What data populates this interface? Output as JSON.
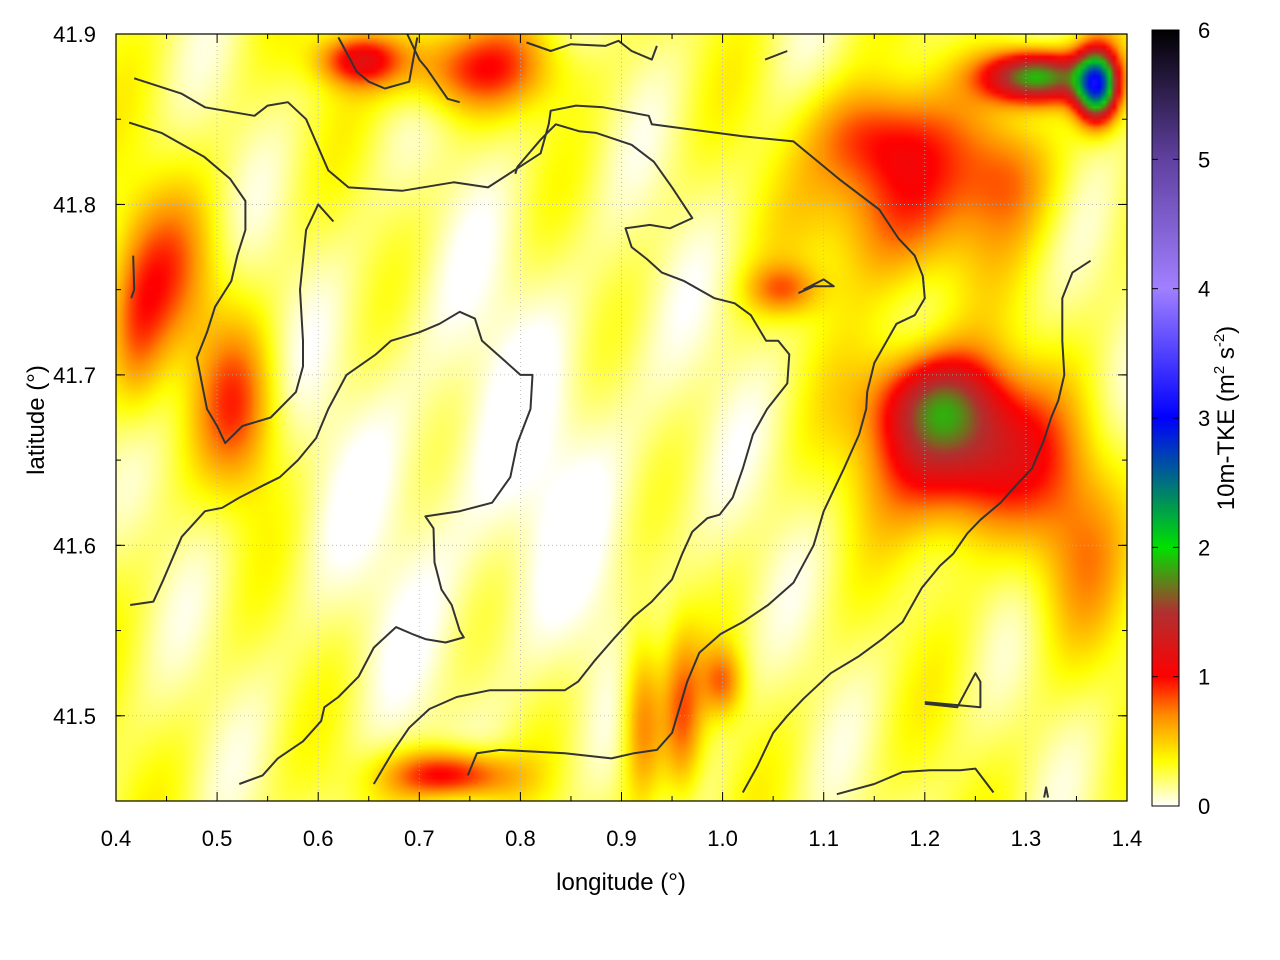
{
  "chart_data": {
    "type": "heatmap",
    "title": "",
    "xlabel": "longitude (°)",
    "ylabel": "latitude (°)",
    "xlim": [
      0.4,
      1.4
    ],
    "ylim": [
      41.45,
      41.9
    ],
    "xticks": [
      "0.4",
      "0.5",
      "0.6",
      "0.7",
      "0.8",
      "0.9",
      "1.0",
      "1.1",
      "1.2",
      "1.3",
      "1.4"
    ],
    "yticks": [
      "41.5",
      "41.6",
      "41.7",
      "41.8",
      "41.9"
    ],
    "grid": true,
    "colorbar": {
      "label": "10m-TKE (m² s⁻²)",
      "label_main": "10m-TKE (m",
      "label_sup1": "2",
      "label_mid": " s",
      "label_sup2": "-2",
      "label_end": ")",
      "range": [
        0,
        6
      ],
      "ticks": [
        "0",
        "1",
        "2",
        "3",
        "4",
        "5",
        "6"
      ],
      "stops": [
        {
          "value": 0.0,
          "color": "#ffffff"
        },
        {
          "value": 0.35,
          "color": "#ffff00"
        },
        {
          "value": 0.7,
          "color": "#ff8c00"
        },
        {
          "value": 1.0,
          "color": "#ff0000"
        },
        {
          "value": 1.5,
          "color": "#b03030"
        },
        {
          "value": 2.0,
          "color": "#00e000"
        },
        {
          "value": 3.0,
          "color": "#0000ff"
        },
        {
          "value": 4.0,
          "color": "#a080ff"
        },
        {
          "value": 5.0,
          "color": "#6040a0"
        },
        {
          "value": 6.0,
          "color": "#000000"
        }
      ]
    },
    "hotspots": [
      {
        "lon": 1.24,
        "lat": 41.655,
        "value": 1.15,
        "rx": 0.085,
        "ry": 0.045
      },
      {
        "lon": 1.21,
        "lat": 41.685,
        "value": 0.9,
        "rx": 0.06,
        "ry": 0.03
      },
      {
        "lon": 1.17,
        "lat": 41.8,
        "value": 0.65,
        "rx": 0.08,
        "ry": 0.05
      },
      {
        "lon": 1.15,
        "lat": 41.84,
        "value": 0.55,
        "rx": 0.06,
        "ry": 0.03
      },
      {
        "lon": 1.06,
        "lat": 41.75,
        "value": 0.5,
        "rx": 0.035,
        "ry": 0.015
      },
      {
        "lon": 0.52,
        "lat": 41.68,
        "value": 0.6,
        "rx": 0.04,
        "ry": 0.05
      },
      {
        "lon": 0.45,
        "lat": 41.76,
        "value": 0.5,
        "rx": 0.05,
        "ry": 0.05
      },
      {
        "lon": 0.42,
        "lat": 41.72,
        "value": 0.4,
        "rx": 0.03,
        "ry": 0.05
      },
      {
        "lon": 0.73,
        "lat": 41.465,
        "value": 0.95,
        "rx": 0.06,
        "ry": 0.015
      },
      {
        "lon": 0.92,
        "lat": 41.5,
        "value": 0.6,
        "rx": 0.02,
        "ry": 0.05
      },
      {
        "lon": 0.96,
        "lat": 41.5,
        "value": 0.55,
        "rx": 0.02,
        "ry": 0.05
      },
      {
        "lon": 1.0,
        "lat": 41.52,
        "value": 0.5,
        "rx": 0.02,
        "ry": 0.02
      },
      {
        "lon": 0.75,
        "lat": 41.88,
        "value": 0.7,
        "rx": 0.08,
        "ry": 0.025
      },
      {
        "lon": 0.64,
        "lat": 41.885,
        "value": 0.8,
        "rx": 0.04,
        "ry": 0.015
      },
      {
        "lon": 1.31,
        "lat": 41.875,
        "value": 1.8,
        "rx": 0.05,
        "ry": 0.015
      },
      {
        "lon": 1.37,
        "lat": 41.87,
        "value": 2.4,
        "rx": 0.02,
        "ry": 0.02
      },
      {
        "lon": 1.28,
        "lat": 41.82,
        "value": 0.5,
        "rx": 0.05,
        "ry": 0.04
      },
      {
        "lon": 1.35,
        "lat": 41.6,
        "value": 0.4,
        "rx": 0.05,
        "ry": 0.06
      }
    ],
    "contours": [
      [
        [
          0.418,
          41.874
        ],
        [
          0.465,
          41.865
        ],
        [
          0.488,
          41.857
        ],
        [
          0.537,
          41.852
        ],
        [
          0.55,
          41.858
        ],
        [
          0.57,
          41.86
        ],
        [
          0.588,
          41.85
        ],
        [
          0.61,
          41.82
        ],
        [
          0.63,
          41.81
        ],
        [
          0.683,
          41.808
        ],
        [
          0.734,
          41.813
        ],
        [
          0.768,
          41.81
        ],
        [
          0.82,
          41.83
        ],
        [
          0.828,
          41.847
        ],
        [
          0.83,
          41.855
        ],
        [
          0.855,
          41.858
        ],
        [
          0.882,
          41.857
        ],
        [
          0.927,
          41.852
        ],
        [
          0.93,
          41.847
        ],
        [
          1.02,
          41.84
        ],
        [
          1.07,
          41.837
        ],
        [
          1.115,
          41.815
        ],
        [
          1.155,
          41.797
        ],
        [
          1.174,
          41.78
        ],
        [
          1.19,
          41.77
        ],
        [
          1.198,
          41.758
        ],
        [
          1.2,
          41.745
        ],
        [
          1.19,
          41.735
        ],
        [
          1.172,
          41.73
        ],
        [
          1.15,
          41.707
        ],
        [
          1.143,
          41.69
        ],
        [
          1.142,
          41.68
        ],
        [
          1.135,
          41.665
        ],
        [
          1.12,
          41.645
        ],
        [
          1.1,
          41.62
        ],
        [
          1.09,
          41.6
        ],
        [
          1.07,
          41.578
        ],
        [
          1.045,
          41.565
        ],
        [
          1.02,
          41.555
        ],
        [
          0.998,
          41.548
        ],
        [
          0.977,
          41.537
        ],
        [
          0.965,
          41.52
        ],
        [
          0.95,
          41.49
        ],
        [
          0.935,
          41.48
        ],
        [
          0.912,
          41.478
        ],
        [
          0.89,
          41.475
        ],
        [
          0.844,
          41.478
        ],
        [
          0.78,
          41.48
        ],
        [
          0.757,
          41.478
        ],
        [
          0.748,
          41.465
        ]
      ],
      [
        [
          0.413,
          41.848
        ],
        [
          0.445,
          41.842
        ],
        [
          0.487,
          41.828
        ],
        [
          0.513,
          41.815
        ],
        [
          0.528,
          41.802
        ],
        [
          0.528,
          41.785
        ],
        [
          0.52,
          41.77
        ],
        [
          0.514,
          41.755
        ],
        [
          0.498,
          41.74
        ],
        [
          0.49,
          41.725
        ],
        [
          0.48,
          41.71
        ],
        [
          0.485,
          41.695
        ],
        [
          0.49,
          41.68
        ],
        [
          0.5,
          41.67
        ],
        [
          0.508,
          41.66
        ],
        [
          0.525,
          41.67
        ],
        [
          0.553,
          41.675
        ],
        [
          0.578,
          41.69
        ],
        [
          0.585,
          41.705
        ],
        [
          0.585,
          41.72
        ],
        [
          0.582,
          41.75
        ],
        [
          0.588,
          41.785
        ],
        [
          0.6,
          41.8
        ],
        [
          0.615,
          41.79
        ]
      ],
      [
        [
          0.415,
          41.745
        ],
        [
          0.418,
          41.75
        ],
        [
          0.417,
          41.77
        ]
      ],
      [
        [
          0.414,
          41.565
        ],
        [
          0.437,
          41.567
        ],
        [
          0.447,
          41.58
        ],
        [
          0.465,
          41.605
        ],
        [
          0.488,
          41.62
        ],
        [
          0.505,
          41.622
        ],
        [
          0.522,
          41.628
        ],
        [
          0.545,
          41.635
        ],
        [
          0.562,
          41.64
        ],
        [
          0.58,
          41.65
        ],
        [
          0.598,
          41.663
        ],
        [
          0.61,
          41.68
        ],
        [
          0.628,
          41.7
        ],
        [
          0.657,
          41.712
        ],
        [
          0.672,
          41.72
        ],
        [
          0.7,
          41.725
        ],
        [
          0.72,
          41.73
        ],
        [
          0.74,
          41.737
        ],
        [
          0.755,
          41.733
        ],
        [
          0.762,
          41.72
        ],
        [
          0.785,
          41.708
        ],
        [
          0.8,
          41.7
        ],
        [
          0.812,
          41.7
        ],
        [
          0.81,
          41.68
        ],
        [
          0.797,
          41.66
        ],
        [
          0.79,
          41.64
        ],
        [
          0.772,
          41.625
        ],
        [
          0.74,
          41.62
        ],
        [
          0.706,
          41.617
        ],
        [
          0.714,
          41.61
        ],
        [
          0.715,
          41.59
        ],
        [
          0.722,
          41.574
        ],
        [
          0.732,
          41.565
        ],
        [
          0.74,
          41.55
        ],
        [
          0.744,
          41.546
        ],
        [
          0.726,
          41.543
        ],
        [
          0.706,
          41.545
        ],
        [
          0.693,
          41.548
        ],
        [
          0.677,
          41.552
        ],
        [
          0.655,
          41.54
        ],
        [
          0.64,
          41.523
        ],
        [
          0.62,
          41.511
        ],
        [
          0.606,
          41.505
        ],
        [
          0.603,
          41.497
        ],
        [
          0.585,
          41.485
        ],
        [
          0.56,
          41.475
        ],
        [
          0.545,
          41.465
        ],
        [
          0.522,
          41.46
        ]
      ],
      [
        [
          0.655,
          41.46
        ],
        [
          0.665,
          41.47
        ],
        [
          0.675,
          41.48
        ],
        [
          0.69,
          41.493
        ],
        [
          0.71,
          41.504
        ],
        [
          0.737,
          41.511
        ],
        [
          0.77,
          41.515
        ],
        [
          0.795,
          41.515
        ],
        [
          0.844,
          41.515
        ],
        [
          0.857,
          41.52
        ],
        [
          0.873,
          41.532
        ],
        [
          0.892,
          41.545
        ],
        [
          0.912,
          41.558
        ],
        [
          0.93,
          41.567
        ],
        [
          0.95,
          41.58
        ],
        [
          0.96,
          41.595
        ],
        [
          0.97,
          41.608
        ],
        [
          0.985,
          41.616
        ],
        [
          0.997,
          41.618
        ],
        [
          1.01,
          41.628
        ],
        [
          1.02,
          41.645
        ],
        [
          1.03,
          41.665
        ],
        [
          1.044,
          41.68
        ],
        [
          1.064,
          41.695
        ],
        [
          1.066,
          41.712
        ],
        [
          1.055,
          41.72
        ],
        [
          1.043,
          41.72
        ],
        [
          1.028,
          41.735
        ],
        [
          1.012,
          41.742
        ],
        [
          0.992,
          41.745
        ],
        [
          0.962,
          41.755
        ],
        [
          0.94,
          41.76
        ],
        [
          0.925,
          41.768
        ],
        [
          0.91,
          41.775
        ],
        [
          0.904,
          41.786
        ],
        [
          0.928,
          41.788
        ],
        [
          0.948,
          41.786
        ],
        [
          0.97,
          41.792
        ],
        [
          0.95,
          41.81
        ],
        [
          0.932,
          41.825
        ],
        [
          0.91,
          41.835
        ],
        [
          0.875,
          41.842
        ],
        [
          0.858,
          41.843
        ],
        [
          0.835,
          41.847
        ],
        [
          0.82,
          41.838
        ],
        [
          0.797,
          41.822
        ],
        [
          0.795,
          41.818
        ]
      ],
      [
        [
          1.02,
          41.455
        ],
        [
          1.034,
          41.47
        ],
        [
          1.05,
          41.49
        ],
        [
          1.064,
          41.5
        ],
        [
          1.08,
          41.51
        ],
        [
          1.107,
          41.525
        ],
        [
          1.135,
          41.535
        ],
        [
          1.158,
          41.545
        ],
        [
          1.178,
          41.555
        ],
        [
          1.197,
          41.575
        ],
        [
          1.215,
          41.588
        ],
        [
          1.228,
          41.595
        ],
        [
          1.242,
          41.607
        ],
        [
          1.255,
          41.615
        ],
        [
          1.275,
          41.625
        ],
        [
          1.29,
          41.635
        ],
        [
          1.306,
          41.645
        ],
        [
          1.318,
          41.662
        ],
        [
          1.325,
          41.675
        ],
        [
          1.332,
          41.685
        ],
        [
          1.338,
          41.7
        ],
        [
          1.336,
          41.72
        ],
        [
          1.336,
          41.745
        ],
        [
          1.346,
          41.76
        ],
        [
          1.364,
          41.767
        ]
      ],
      [
        [
          1.113,
          41.454
        ],
        [
          1.15,
          41.46
        ],
        [
          1.178,
          41.467
        ],
        [
          1.205,
          41.468
        ],
        [
          1.235,
          41.468
        ],
        [
          1.25,
          41.469
        ],
        [
          1.268,
          41.455
        ]
      ],
      [
        [
          1.2,
          41.508
        ],
        [
          1.255,
          41.505
        ],
        [
          1.255,
          41.52
        ],
        [
          1.25,
          41.525
        ],
        [
          1.232,
          41.505
        ],
        [
          1.2,
          41.507
        ]
      ],
      [
        [
          0.74,
          41.86
        ],
        [
          0.728,
          41.862
        ],
        [
          0.707,
          41.88
        ],
        [
          0.7,
          41.885
        ],
        [
          0.688,
          41.9
        ]
      ],
      [
        [
          0.62,
          41.898
        ],
        [
          0.638,
          41.878
        ],
        [
          0.65,
          41.872
        ],
        [
          0.666,
          41.868
        ],
        [
          0.69,
          41.872
        ],
        [
          0.694,
          41.885
        ],
        [
          0.698,
          41.898
        ]
      ],
      [
        [
          0.806,
          41.895
        ],
        [
          0.83,
          41.89
        ],
        [
          0.85,
          41.894
        ],
        [
          0.884,
          41.893
        ],
        [
          0.897,
          41.896
        ],
        [
          0.91,
          41.89
        ],
        [
          0.93,
          41.885
        ],
        [
          0.935,
          41.893
        ]
      ],
      [
        [
          1.042,
          41.885
        ],
        [
          1.064,
          41.89
        ]
      ],
      [
        [
          1.075,
          41.748
        ],
        [
          1.09,
          41.752
        ],
        [
          1.11,
          41.752
        ],
        [
          1.1,
          41.756
        ],
        [
          1.08,
          41.75
        ]
      ],
      [
        [
          1.318,
          41.452
        ],
        [
          1.32,
          41.458
        ],
        [
          1.322,
          41.452
        ]
      ]
    ]
  }
}
